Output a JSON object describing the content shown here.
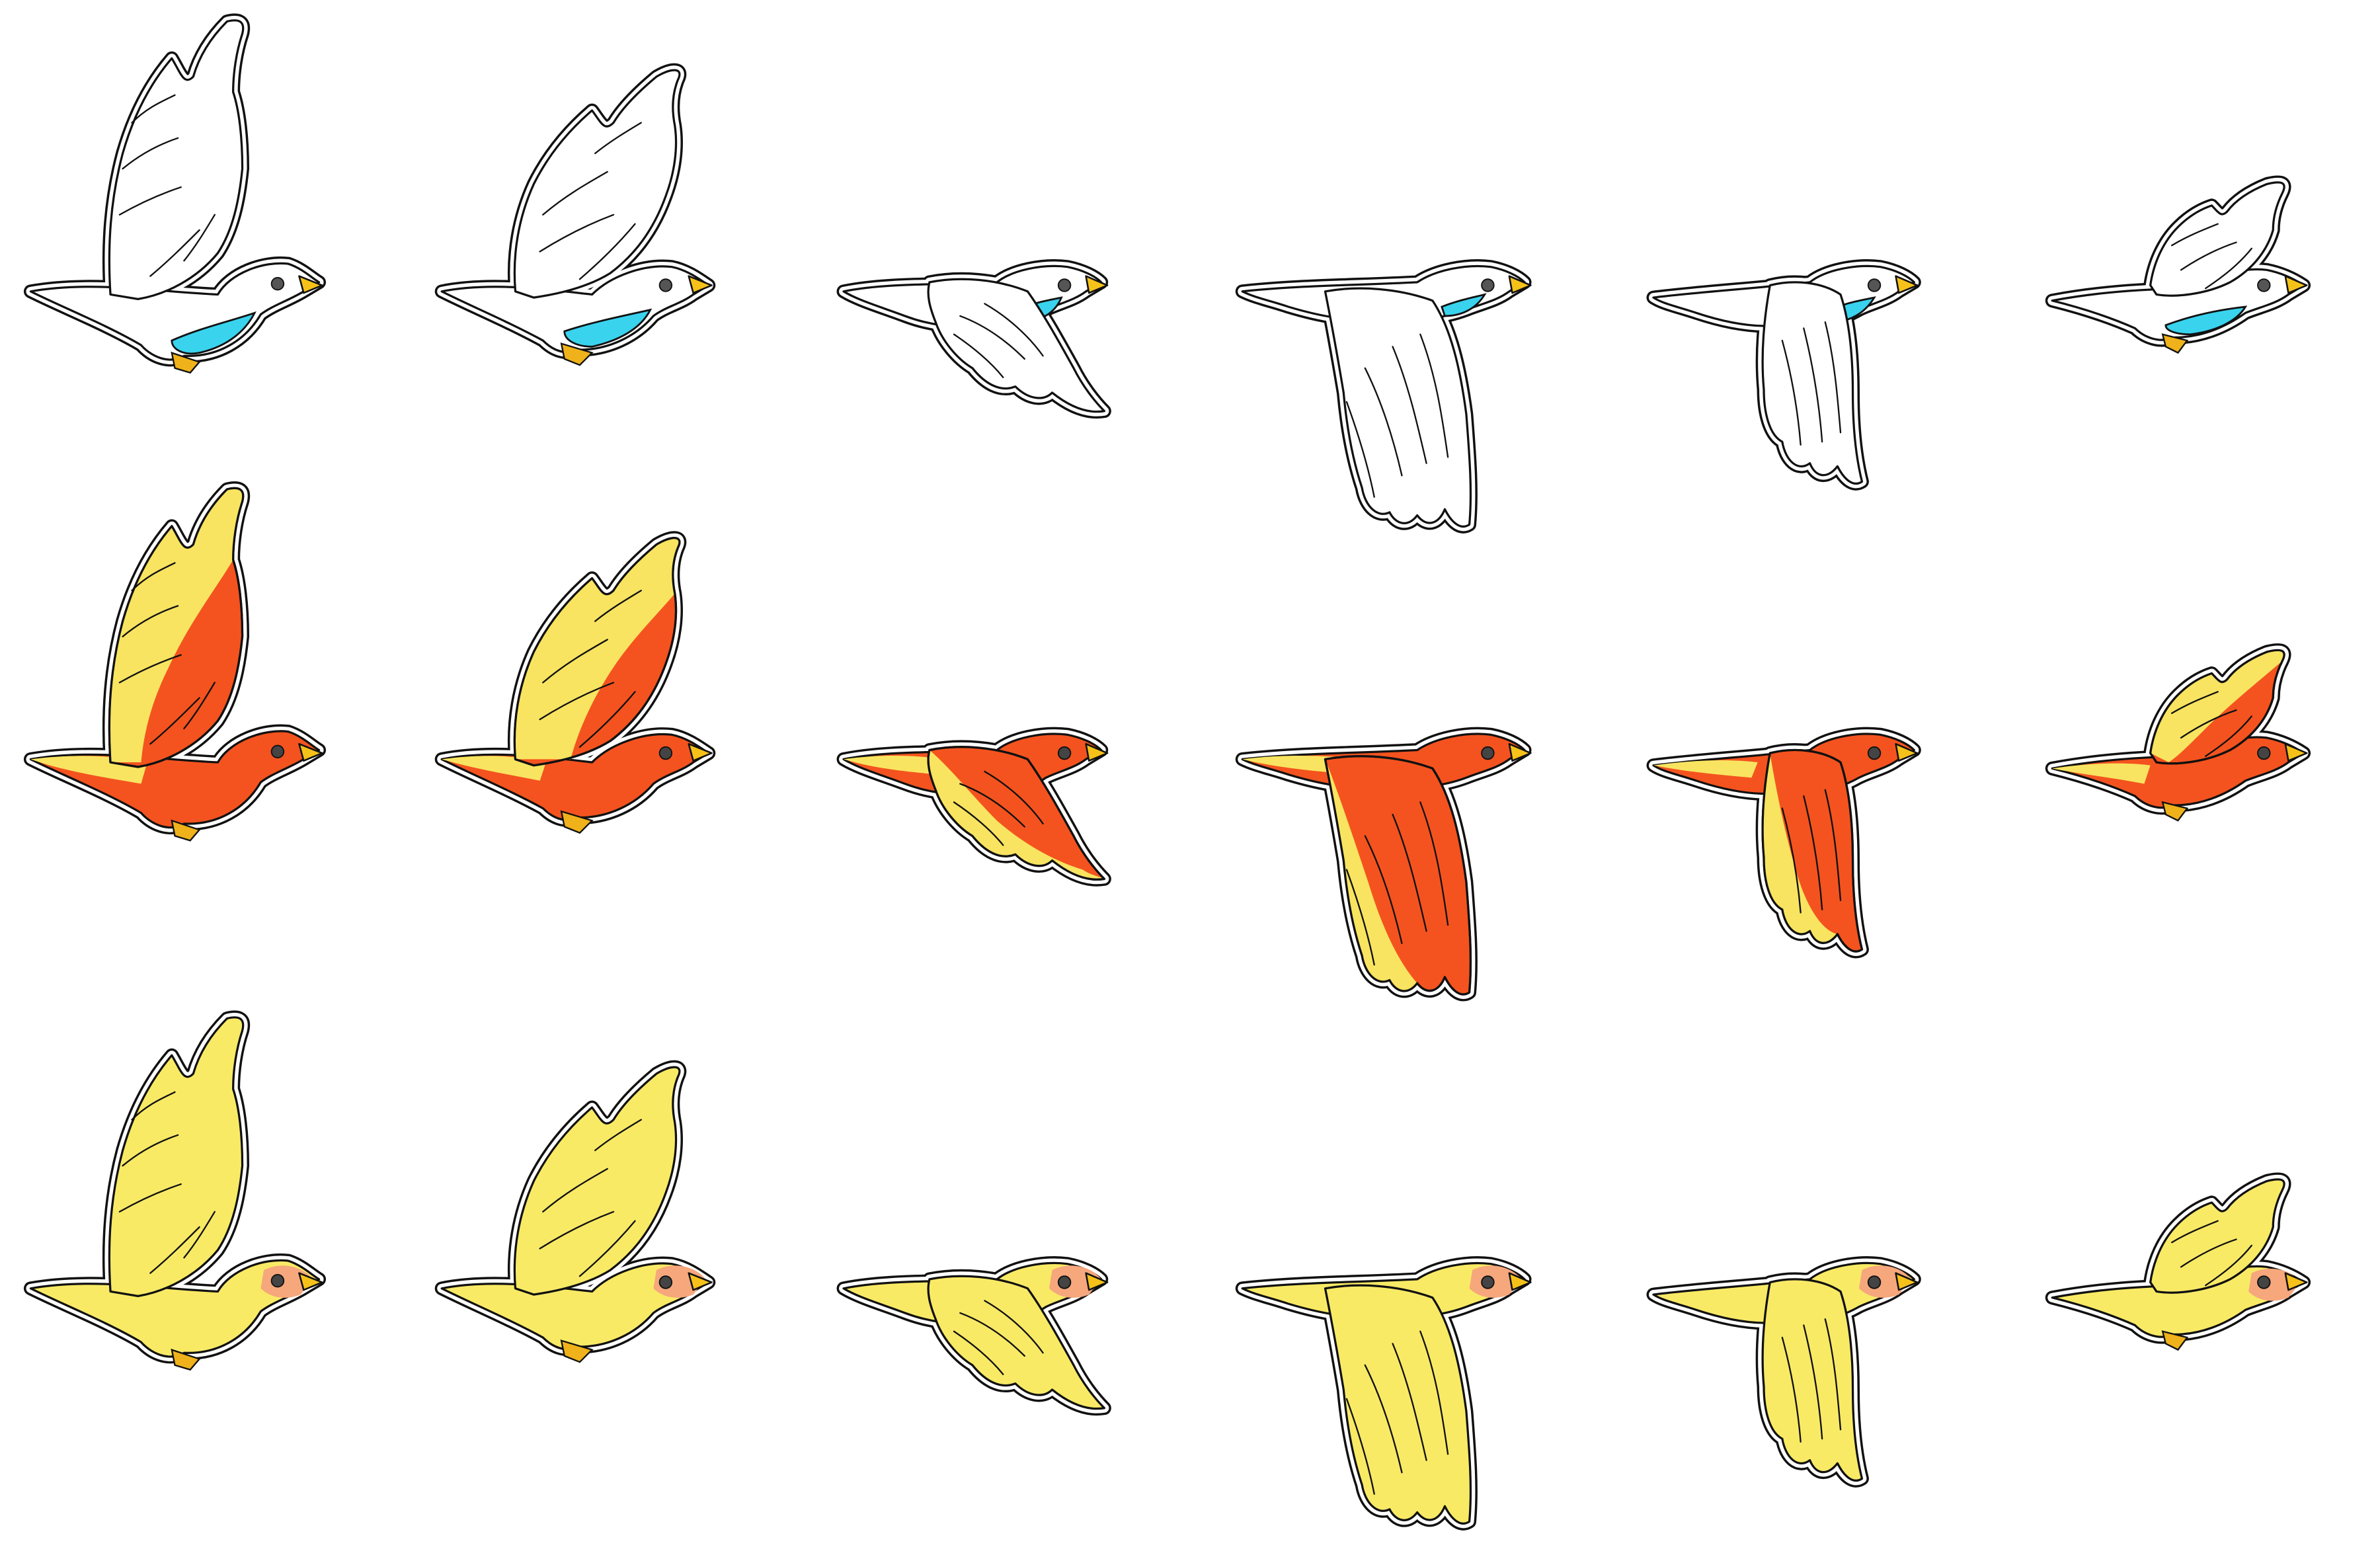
{
  "sprite_sheet": {
    "rows": [
      {
        "variant": "white-bird",
        "colors": {
          "body": "#ffffff",
          "wing": "#ffffff",
          "wing_edge": "#ffffff",
          "head": "#ffffff",
          "belly": "#39d3ee",
          "beak": "#f6c21a",
          "feet": "#f0b21a",
          "eye": "#555555",
          "outline": "#111111",
          "halo": "#ffffff"
        },
        "has_belly_patch": true,
        "has_face_patch": false,
        "frames": [
          {
            "pose": "wings-up"
          },
          {
            "pose": "wings-raised"
          },
          {
            "pose": "wings-mid-down"
          },
          {
            "pose": "wings-down"
          },
          {
            "pose": "wings-returning"
          },
          {
            "pose": "wings-folded-up"
          }
        ]
      },
      {
        "variant": "red-yellow-bird",
        "colors": {
          "body": "#f4531f",
          "wing": "#f4531f",
          "wing_edge": "#f8e460",
          "head": "#f4531f",
          "belly": "#f4531f",
          "beak": "#f6c21a",
          "feet": "#f0b21a",
          "eye": "#444444",
          "outline": "#111111",
          "halo": "#ffffff",
          "tail": "#f8e460"
        },
        "has_belly_patch": false,
        "has_face_patch": false,
        "frames": [
          {
            "pose": "wings-up"
          },
          {
            "pose": "wings-raised"
          },
          {
            "pose": "wings-mid-down"
          },
          {
            "pose": "wings-down"
          },
          {
            "pose": "wings-returning"
          },
          {
            "pose": "wings-folded-up"
          }
        ]
      },
      {
        "variant": "yellow-bird",
        "colors": {
          "body": "#f9ea66",
          "wing": "#f9ea66",
          "wing_edge": "#f9ea66",
          "head": "#f9ea66",
          "face": "#f6a77c",
          "beak": "#f6c21a",
          "feet": "#f0b21a",
          "eye": "#444444",
          "outline": "#111111",
          "halo": "#ffffff"
        },
        "has_belly_patch": false,
        "has_face_patch": true,
        "frames": [
          {
            "pose": "wings-up"
          },
          {
            "pose": "wings-raised"
          },
          {
            "pose": "wings-mid-down"
          },
          {
            "pose": "wings-down"
          },
          {
            "pose": "wings-returning"
          },
          {
            "pose": "wings-folded-up"
          }
        ]
      }
    ]
  }
}
